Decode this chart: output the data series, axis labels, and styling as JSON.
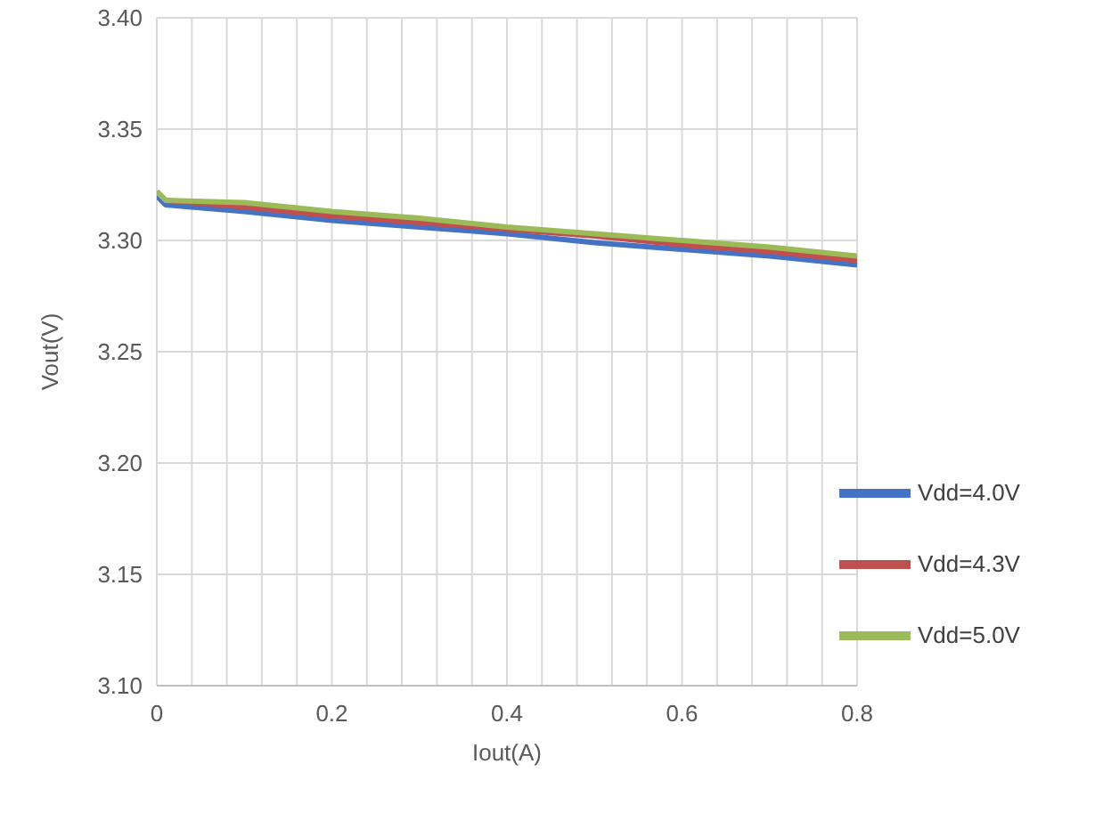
{
  "chart_data": {
    "type": "line",
    "xlabel": "Iout(A)",
    "ylabel": "Vout(V)",
    "x": [
      0,
      0.01,
      0.1,
      0.2,
      0.3,
      0.4,
      0.5,
      0.6,
      0.7,
      0.8
    ],
    "series": [
      {
        "name": "Vdd=4.0V",
        "color": "#4472c4",
        "values": [
          3.32,
          3.316,
          3.313,
          3.309,
          3.306,
          3.303,
          3.299,
          3.296,
          3.293,
          3.289
        ]
      },
      {
        "name": "Vdd=4.3V",
        "color": "#c0504d",
        "values": [
          3.322,
          3.318,
          3.315,
          3.311,
          3.308,
          3.305,
          3.302,
          3.298,
          3.295,
          3.291
        ]
      },
      {
        "name": "Vdd=5.0V",
        "color": "#9bbb59",
        "values": [
          3.322,
          3.318,
          3.317,
          3.313,
          3.31,
          3.306,
          3.303,
          3.3,
          3.297,
          3.293
        ]
      }
    ],
    "xlim": [
      0,
      0.8
    ],
    "xticks": [
      0,
      {
        "value": 0.04,
        "label": null
      },
      {
        "value": 0.08,
        "label": null
      },
      {
        "value": 0.12,
        "label": null
      },
      {
        "value": 0.16,
        "label": null
      },
      0.2,
      {
        "value": 0.24,
        "label": null
      },
      {
        "value": 0.28,
        "label": null
      },
      {
        "value": 0.32,
        "label": null
      },
      {
        "value": 0.36,
        "label": null
      },
      0.4,
      {
        "value": 0.44,
        "label": null
      },
      {
        "value": 0.48,
        "label": null
      },
      {
        "value": 0.52,
        "label": null
      },
      {
        "value": 0.56,
        "label": null
      },
      0.6,
      {
        "value": 0.64,
        "label": null
      },
      {
        "value": 0.68,
        "label": null
      },
      {
        "value": 0.72,
        "label": null
      },
      {
        "value": 0.76,
        "label": null
      },
      0.8
    ],
    "ylim": [
      3.1,
      3.4
    ],
    "yticks": [
      {
        "value": 3.1,
        "label": "3.10"
      },
      3.15,
      {
        "value": 3.2,
        "label": "3.20"
      },
      3.25,
      {
        "value": 3.3,
        "label": "3.30"
      },
      3.35,
      {
        "value": 3.4,
        "label": "3.40"
      }
    ],
    "grid": true,
    "legend": "bottom right",
    "marker": "none",
    "line_style": "solid"
  }
}
